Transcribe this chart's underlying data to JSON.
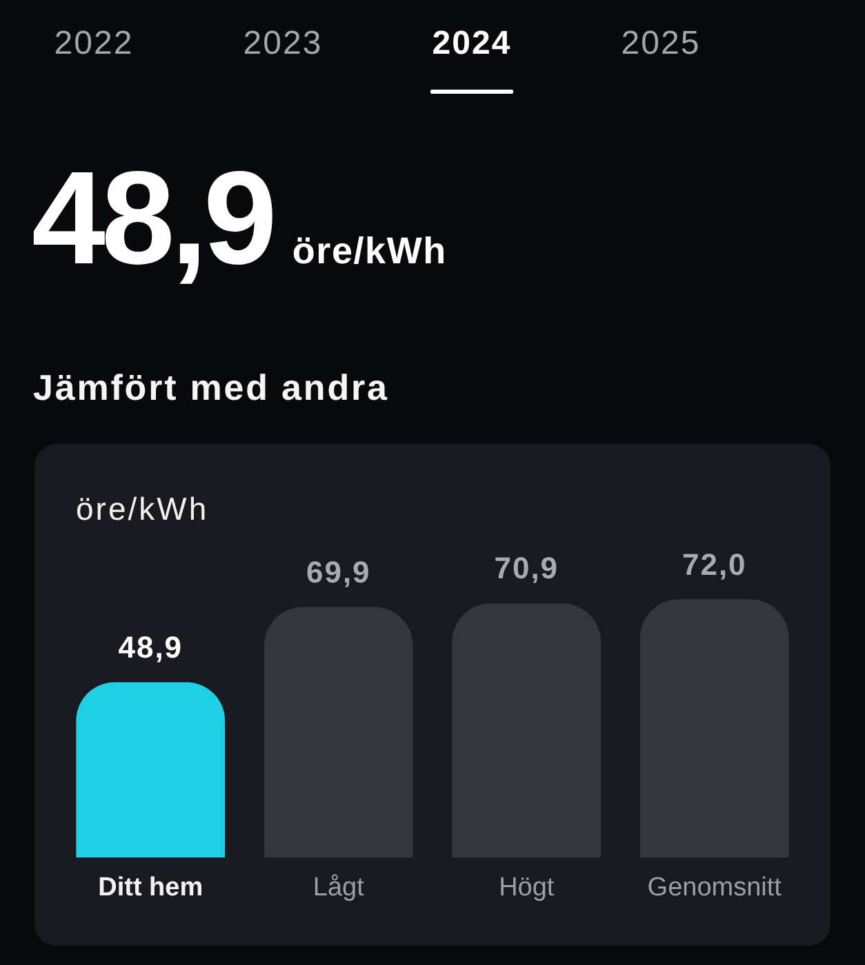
{
  "chart_data": {
    "type": "bar",
    "title": "Jämfört med andra",
    "ylabel": "öre/kWh",
    "annotations": [
      "2022",
      "2023",
      "2024",
      "2025",
      "48,9",
      "öre/kWh"
    ],
    "categories": [
      "Ditt hem",
      "Lågt",
      "Högt",
      "Genomsnitt"
    ],
    "values": [
      48.9,
      69.9,
      70.9,
      72.0
    ],
    "colors": [
      "#1fcfe6",
      "#33363d",
      "#33363d",
      "#33363d"
    ],
    "value_labels": [
      "48,9",
      "69,9",
      "70,9",
      "72,0"
    ]
  }
}
